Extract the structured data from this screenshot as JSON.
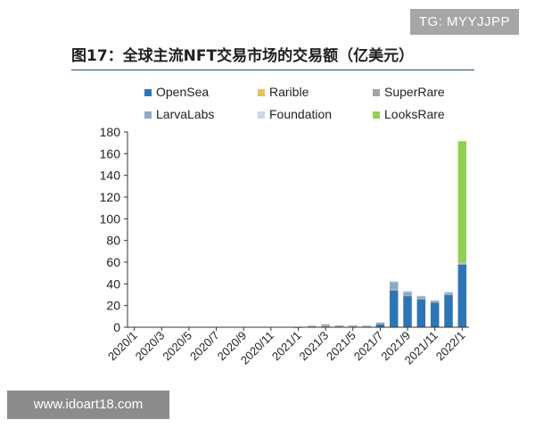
{
  "watermark_top": "TG: MYYJJPP",
  "watermark_bottom": "www.idoart18.com",
  "title": "图17：全球主流NFT交易市场的交易额（亿美元）",
  "chart_data": {
    "type": "bar",
    "stacked": true,
    "title": "图17：全球主流NFT交易市场的交易额（亿美元）",
    "xlabel": "",
    "ylabel": "",
    "ylim": [
      0,
      180
    ],
    "yticks": [
      0,
      20,
      40,
      60,
      80,
      100,
      120,
      140,
      160,
      180
    ],
    "grid": false,
    "legend_position": "top",
    "categories": [
      "2020/1",
      "2020/2",
      "2020/3",
      "2020/4",
      "2020/5",
      "2020/6",
      "2020/7",
      "2020/8",
      "2020/9",
      "2020/10",
      "2020/11",
      "2020/12",
      "2021/1",
      "2021/2",
      "2021/3",
      "2021/4",
      "2021/5",
      "2021/6",
      "2021/7",
      "2021/8",
      "2021/9",
      "2021/10",
      "2021/11",
      "2021/12",
      "2022/1"
    ],
    "xtick_labels": [
      "2020/1",
      "2020/3",
      "2020/5",
      "2020/7",
      "2020/9",
      "2020/11",
      "2021/1",
      "2021/3",
      "2021/5",
      "2021/7",
      "2021/9",
      "2021/11",
      "2022/1"
    ],
    "series": [
      {
        "name": "OpenSea",
        "color": "#2e75b6",
        "values": [
          0,
          0,
          0,
          0,
          0,
          0,
          0,
          0,
          0,
          0,
          0,
          0,
          0.1,
          0.5,
          1,
          1,
          1,
          1,
          3,
          34,
          29,
          26,
          23,
          30,
          58
        ]
      },
      {
        "name": "Rarible",
        "color": "#e6c35c",
        "values": [
          0,
          0,
          0,
          0,
          0,
          0,
          0,
          0,
          0,
          0,
          0,
          0,
          0,
          0.2,
          0.3,
          0.2,
          0.1,
          0.1,
          0.2,
          0.4,
          0.3,
          0.2,
          0.2,
          0.2,
          0.2
        ]
      },
      {
        "name": "SuperRare",
        "color": "#a5a5a5",
        "values": [
          0,
          0,
          0,
          0,
          0,
          0,
          0,
          0,
          0,
          0,
          0,
          0,
          0,
          0.2,
          0.3,
          0.2,
          0.1,
          0.1,
          0.1,
          0.3,
          0.2,
          0.2,
          0.2,
          0.2,
          0.2
        ]
      },
      {
        "name": "LarvaLabs",
        "color": "#8ea9c8",
        "values": [
          0,
          0,
          0,
          0,
          0,
          0,
          0,
          0,
          0,
          0,
          0,
          0,
          0.1,
          0.5,
          1,
          0.3,
          0.5,
          0.3,
          1,
          7,
          3,
          2,
          1,
          1.5,
          0.5
        ]
      },
      {
        "name": "Foundation",
        "color": "#c9d7e6",
        "values": [
          0,
          0,
          0,
          0,
          0,
          0,
          0,
          0,
          0,
          0,
          0,
          0,
          0,
          0.3,
          0.5,
          0.3,
          0.3,
          0.3,
          0.4,
          0.8,
          0.8,
          0.6,
          0.6,
          0.8,
          0.6
        ]
      },
      {
        "name": "LooksRare",
        "color": "#92d050",
        "values": [
          0,
          0,
          0,
          0,
          0,
          0,
          0,
          0,
          0,
          0,
          0,
          0,
          0,
          0,
          0,
          0,
          0,
          0,
          0,
          0,
          0,
          0,
          0,
          0,
          112
        ]
      }
    ]
  }
}
